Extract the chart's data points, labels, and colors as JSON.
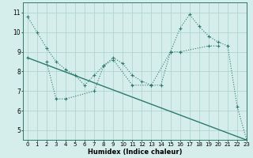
{
  "series1_x": [
    0,
    1,
    2,
    3,
    4,
    5,
    6,
    7,
    8,
    9,
    10,
    11,
    12,
    13,
    14,
    15,
    16,
    17,
    18,
    19,
    20,
    21,
    22,
    23
  ],
  "series1_y": [
    10.8,
    10.0,
    9.2,
    8.5,
    8.1,
    7.8,
    7.3,
    7.8,
    8.3,
    8.7,
    8.4,
    7.8,
    7.5,
    7.3,
    7.3,
    9.0,
    10.2,
    10.9,
    10.3,
    9.8,
    9.5,
    9.3,
    6.2,
    4.5
  ],
  "series2_x": [
    2,
    3,
    4,
    7,
    8,
    9,
    11,
    13,
    15,
    16,
    19,
    20
  ],
  "series2_y": [
    8.5,
    6.6,
    6.6,
    7.0,
    8.3,
    8.6,
    7.3,
    7.3,
    9.0,
    9.0,
    9.3,
    9.3
  ],
  "series3_x": [
    0,
    23
  ],
  "series3_y": [
    8.7,
    4.5
  ],
  "line_color": "#2a7a6a",
  "bg_color": "#d6eeeb",
  "grid_color": "#b0d5d0",
  "xlabel": "Humidex (Indice chaleur)",
  "xlim": [
    -0.5,
    23
  ],
  "ylim": [
    4.5,
    11.5
  ],
  "yticks": [
    5,
    6,
    7,
    8,
    9,
    10,
    11
  ],
  "xticks": [
    0,
    1,
    2,
    3,
    4,
    5,
    6,
    7,
    8,
    9,
    10,
    11,
    12,
    13,
    14,
    15,
    16,
    17,
    18,
    19,
    20,
    21,
    22,
    23
  ],
  "xlabel_fontsize": 6.0,
  "tick_fontsize": 5.0,
  "ylabel_fontsize": 6.0
}
